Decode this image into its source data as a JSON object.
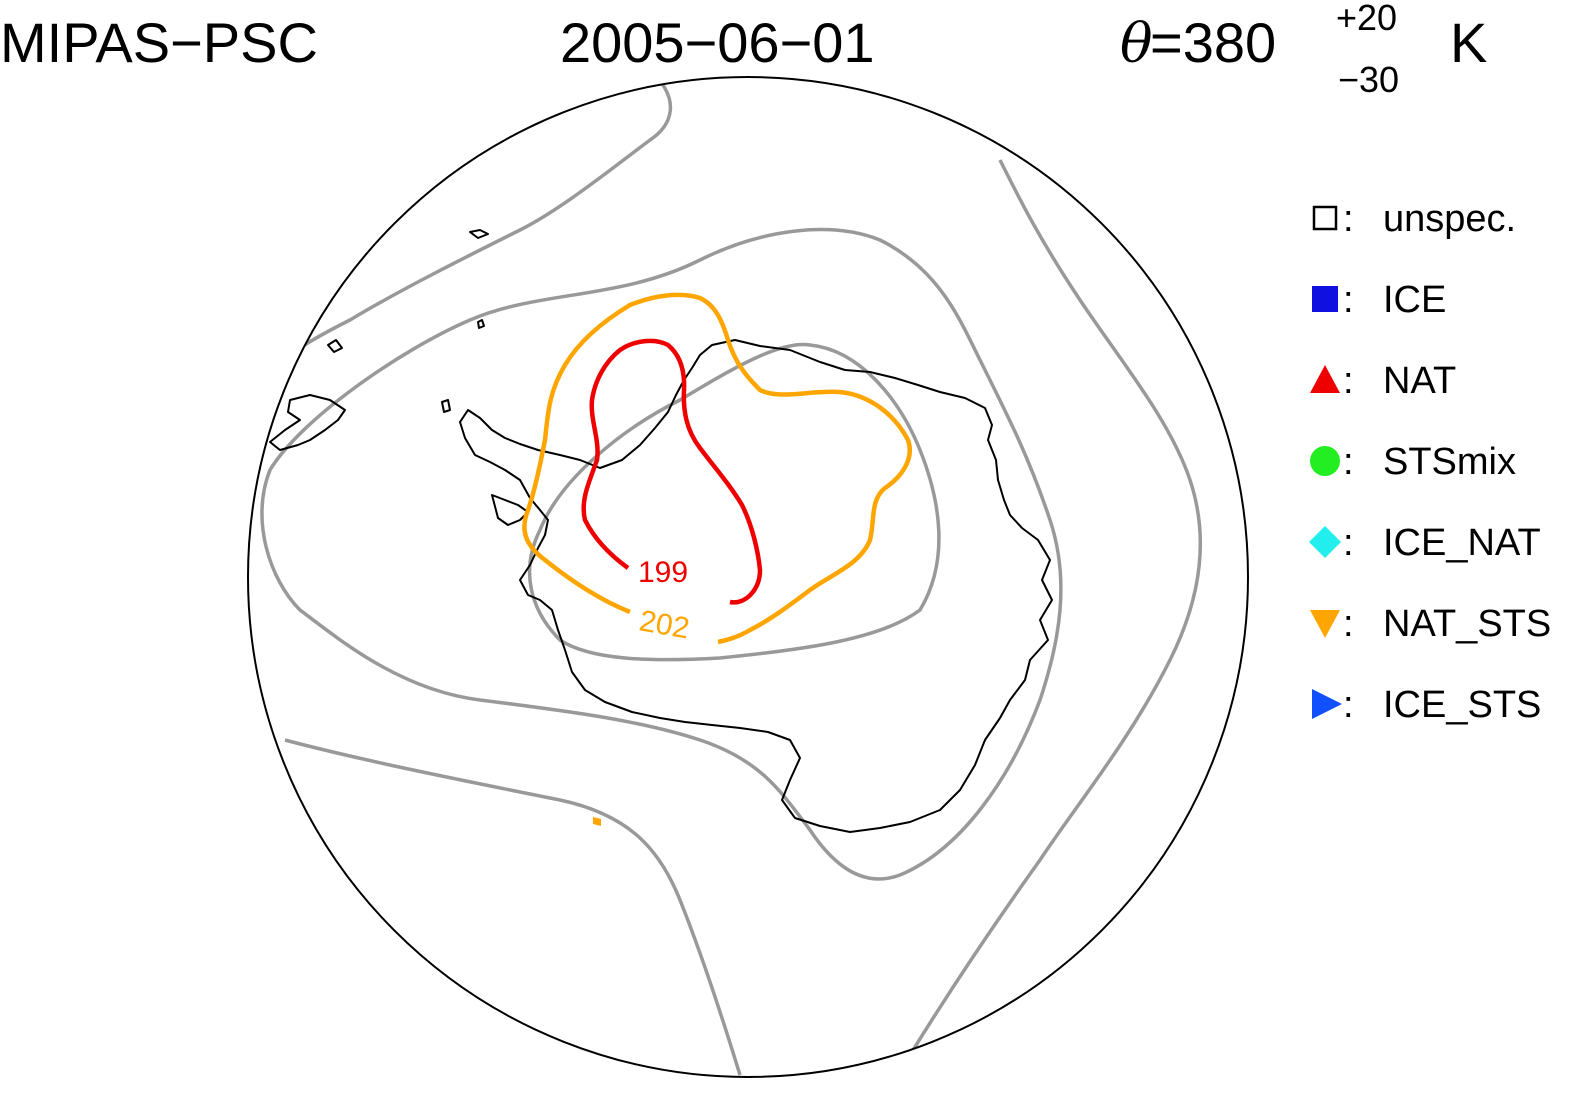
{
  "header": {
    "instrument": "MIPAS−PSC",
    "date": "2005−06−01",
    "theta_symbol": "θ",
    "theta_value": "=380",
    "theta_sup": "+20",
    "theta_sub": "−30",
    "theta_unit": "K"
  },
  "contours": {
    "inner": {
      "label": "199",
      "color": "#ee0000"
    },
    "outer": {
      "label": "202",
      "color": "#ffa500"
    },
    "background_color": "#999999",
    "coastline_color": "#000000"
  },
  "legend": {
    "items": [
      {
        "marker": "open-square-icon",
        "color": "#000000",
        "label": "unspec."
      },
      {
        "marker": "filled-square-icon",
        "color": "#1010e0",
        "label": "ICE"
      },
      {
        "marker": "triangle-up-icon",
        "color": "#ee0000",
        "label": "NAT"
      },
      {
        "marker": "circle-icon",
        "color": "#22ee22",
        "label": "STSmix"
      },
      {
        "marker": "diamond-icon",
        "color": "#22eeee",
        "label": "ICE_NAT"
      },
      {
        "marker": "triangle-down-icon",
        "color": "#ffa500",
        "label": "NAT_STS"
      },
      {
        "marker": "triangle-right-icon",
        "color": "#1050ff",
        "label": "ICE_STS"
      }
    ]
  }
}
